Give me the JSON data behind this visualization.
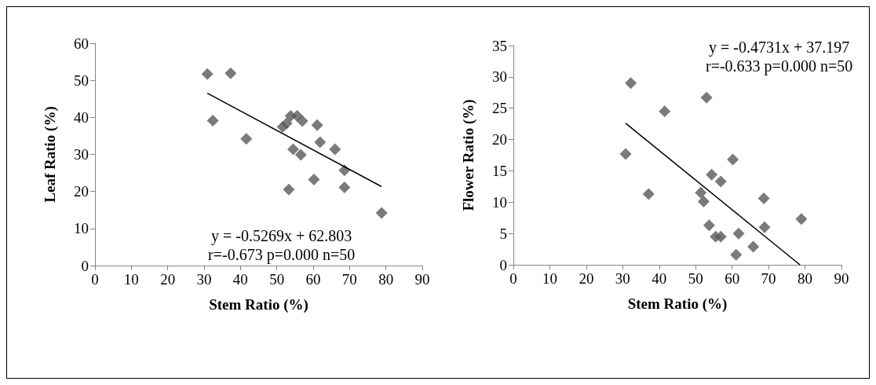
{
  "chart_data": [
    {
      "type": "scatter",
      "xlabel": "Stem Ratio (%)",
      "ylabel": "Leaf Ratio (%)",
      "xlim": [
        0,
        90
      ],
      "xticks": [
        0,
        10,
        20,
        30,
        40,
        50,
        60,
        70,
        80,
        90
      ],
      "ylim": [
        0,
        60
      ],
      "yticks": [
        0,
        10,
        20,
        30,
        40,
        50,
        60
      ],
      "marker": "diamond",
      "grid": false,
      "annotations": [
        "y = -0.5269x + 62.803",
        "r=-0.673 p=0.000 n=50"
      ],
      "series": [
        {
          "color": "#595959",
          "x": [
            30.9,
            37.3,
            32.4,
            41.6,
            51.6,
            52.7,
            53.8,
            55.6,
            57.0,
            61.1,
            54.5,
            56.6,
            61.9,
            66.0,
            68.6,
            60.2,
            53.3,
            68.6,
            78.8
          ],
          "values": [
            51.7,
            51.9,
            39.1,
            34.2,
            37.4,
            38.4,
            40.4,
            40.4,
            39.0,
            37.9,
            31.4,
            29.9,
            33.3,
            31.4,
            25.7,
            23.2,
            20.5,
            21.1,
            14.2
          ]
        },
        {
          "type": "line",
          "color": "#000000",
          "marker": "none",
          "x": [
            30.9,
            78.8
          ],
          "values": [
            46.5,
            21.3
          ]
        }
      ]
    },
    {
      "type": "scatter",
      "xlabel": "Stem Ratio (%)",
      "ylabel": "Flower Ratio (%)",
      "xlim": [
        0,
        90
      ],
      "xticks": [
        0,
        10,
        20,
        30,
        40,
        50,
        60,
        70,
        80,
        90
      ],
      "ylim": [
        0,
        35
      ],
      "yticks": [
        0,
        5,
        10,
        15,
        20,
        25,
        30,
        35
      ],
      "marker": "diamond",
      "grid": false,
      "annotations": [
        "y = -0.4731x + 37.197",
        "r=-0.633 p=0.000 n=50"
      ],
      "series": [
        {
          "color": "#595959",
          "x": [
            32.2,
            30.8,
            37.1,
            41.5,
            53.0,
            51.4,
            52.2,
            54.4,
            56.9,
            60.2,
            53.7,
            55.5,
            56.9,
            61.1,
            61.8,
            65.8,
            68.7,
            68.9,
            79.0
          ],
          "values": [
            29.0,
            17.7,
            11.3,
            24.5,
            26.7,
            11.5,
            10.1,
            14.4,
            13.3,
            16.8,
            6.3,
            4.5,
            4.5,
            1.6,
            5.0,
            2.9,
            10.6,
            6.0,
            7.3
          ]
        },
        {
          "type": "line",
          "color": "#000000",
          "marker": "none",
          "x": [
            30.8,
            78.6
          ],
          "values": [
            22.6,
            0
          ]
        }
      ]
    }
  ]
}
